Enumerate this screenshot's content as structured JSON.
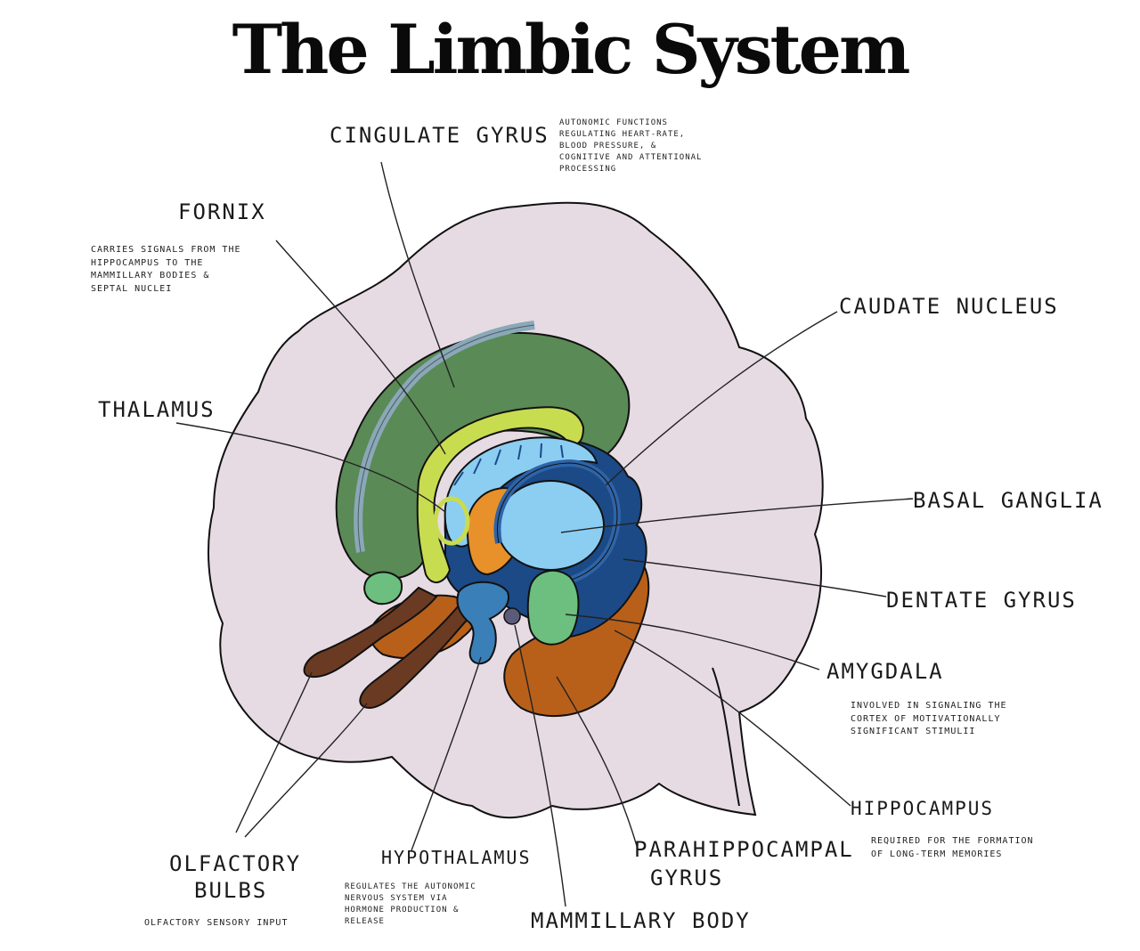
{
  "title": "The Limbic System",
  "structures": {
    "cingulate_gyrus": {
      "name": "CINGULATE GYRUS",
      "note": [
        "AUTONOMIC FUNCTIONS",
        "REGULATING HEART-RATE,",
        "BLOOD PRESSURE, &",
        "COGNITIVE AND ATTENTIONAL",
        "PROCESSING"
      ]
    },
    "fornix": {
      "name": "FORNIX",
      "note": [
        "CARRIES SIGNALS FROM THE",
        "HIPPOCAMPUS TO THE",
        "MAMMILLARY BODIES &",
        "SEPTAL NUCLEI"
      ]
    },
    "caudate_nucleus": {
      "name": "CAUDATE NUCLEUS"
    },
    "thalamus": {
      "name": "THALAMUS"
    },
    "basal_ganglia": {
      "name": "BASAL GANGLIA"
    },
    "dentate_gyrus": {
      "name": "DENTATE GYRUS"
    },
    "amygdala": {
      "name": "AMYGDALA",
      "note": [
        "INVOLVED IN SIGNALING THE",
        "CORTEX OF MOTIVATIONALLY",
        "SIGNIFICANT STIMULII"
      ]
    },
    "hippocampus": {
      "name": "HIPPOCAMPUS",
      "note": [
        "REQUIRED FOR THE FORMATION",
        "OF LONG-TERM MEMORIES"
      ]
    },
    "parahippocampal_gyrus": {
      "name_line1": "PARAHIPPOCAMPAL",
      "name_line2": "GYRUS"
    },
    "mammillary_body": {
      "name": "MAMMILLARY BODY"
    },
    "hypothalamus": {
      "name": "HYPOTHALAMUS",
      "note": [
        "REGULATES THE AUTONOMIC",
        "NERVOUS SYSTEM VIA",
        "HORMONE PRODUCTION &",
        "RELEASE"
      ]
    },
    "olfactory_bulbs": {
      "name_line1": "OLFACTORY",
      "name_line2": "BULBS",
      "note": [
        "OLFACTORY SENSORY INPUT"
      ]
    }
  },
  "colors": {
    "brain": "#e6dbe3",
    "cingulate": "#5a8a55",
    "cingulate_stripe": "#8aa8b8",
    "fornix": "#c8dc50",
    "light_blue": "#8ccdf2",
    "dark_blue": "#1b4a86",
    "mid_blue": "#2e64a8",
    "orange": "#e8902a",
    "brown": "#b8601a",
    "dark_brown": "#6b3a22",
    "amygdala": "#6cbf7e",
    "hypothalamus": "#3a7fb8",
    "mammillary": "#5b5b7a"
  }
}
